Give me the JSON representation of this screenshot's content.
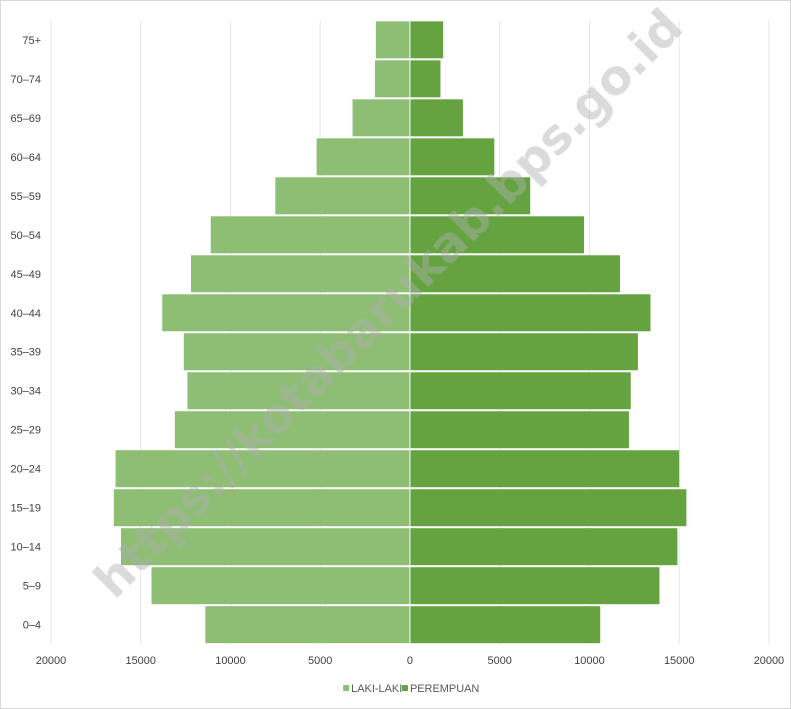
{
  "chart_data": {
    "type": "bar",
    "orientation": "horizontal-population-pyramid",
    "categories": [
      "0–4",
      "5–9",
      "10–14",
      "15–19",
      "20–24",
      "25–29",
      "30–34",
      "35–39",
      "40–44",
      "45–49",
      "50–54",
      "55–59",
      "60–64",
      "65–69",
      "70–74",
      "75+"
    ],
    "series": [
      {
        "name": "LAKI-LAKI",
        "color": "#8dbe73",
        "values": [
          11400,
          14400,
          16100,
          16500,
          16400,
          13100,
          12400,
          12600,
          13800,
          12200,
          11100,
          7500,
          5200,
          3200,
          1950,
          1900
        ]
      },
      {
        "name": "PEREMPUAN",
        "color": "#64a340",
        "values": [
          10600,
          13900,
          14900,
          15400,
          15000,
          12200,
          12300,
          12700,
          13400,
          11700,
          9700,
          6700,
          4700,
          2950,
          1700,
          1850
        ]
      }
    ],
    "xticks": [
      "20000",
      "15000",
      "10000",
      "5000",
      "0",
      "5000",
      "10000",
      "15000",
      "20000"
    ],
    "xlim": [
      -20000,
      20000
    ],
    "grid": true,
    "legend_position": "bottom",
    "title": "",
    "xlabel": "",
    "ylabel": ""
  },
  "watermark": "https://kotabarukab.bps.go.id"
}
